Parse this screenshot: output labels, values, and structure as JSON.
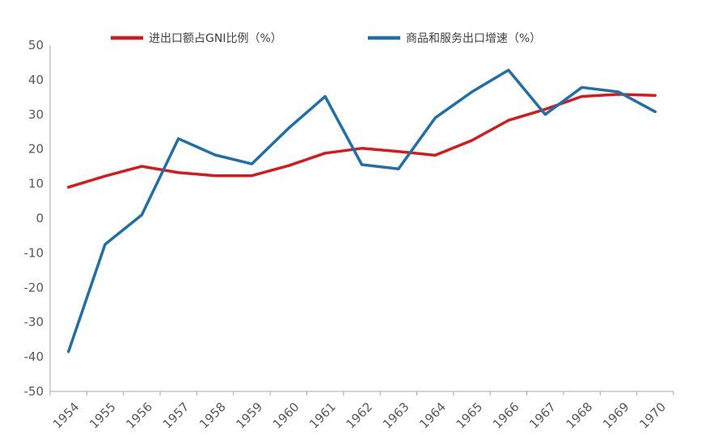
{
  "chart_data": {
    "type": "line",
    "categories": [
      "1954",
      "1955",
      "1956",
      "1957",
      "1958",
      "1959",
      "1960",
      "1961",
      "1962",
      "1963",
      "1964",
      "1965",
      "1966",
      "1967",
      "1968",
      "1969",
      "1970"
    ],
    "series": [
      {
        "name": "进出口额占GNI比例（%）",
        "color": "#d7191c",
        "values": [
          9,
          12.2,
          15,
          13.2,
          12.3,
          12.3,
          15.2,
          18.8,
          20.2,
          19.3,
          18.2,
          22.5,
          28.3,
          31.5,
          35.2,
          35.8,
          35.5
        ]
      },
      {
        "name": "商品和服务出口增速（%）",
        "color": "#1f6fa8",
        "values": [
          -38.5,
          -7.5,
          1,
          23,
          18.3,
          15.7,
          26,
          35.2,
          15.5,
          14.3,
          29,
          36.5,
          42.8,
          30,
          37.8,
          36.5,
          30.8
        ]
      }
    ],
    "yticks": [
      "50",
      "40",
      "30",
      "20",
      "10",
      "0",
      "-10",
      "-20",
      "-30",
      "-40",
      "-50"
    ],
    "ylim": [
      -50,
      50
    ],
    "legend_position": "top",
    "grid": false
  }
}
